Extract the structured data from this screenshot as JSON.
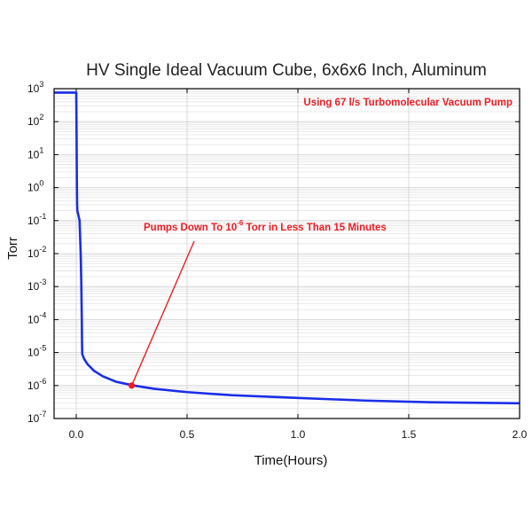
{
  "chart_data": {
    "type": "line",
    "title": "HV Single Ideal Vacuum Cube, 6x6x6 Inch, Aluminum",
    "xlabel": "Time(Hours)",
    "ylabel": "Torr",
    "y_scale": "log",
    "xlim": [
      -0.1,
      2.0
    ],
    "ylim_exponents": [
      -7,
      3
    ],
    "x_ticks": [
      "0.0",
      "0.5",
      "1.0",
      "1.5",
      "2.0"
    ],
    "x_tick_values": [
      0,
      0.5,
      1.0,
      1.5,
      2.0
    ],
    "y_tick_base": "10",
    "y_tick_exponents": [
      "3",
      "2",
      "1",
      "0",
      "-1",
      "-2",
      "-3",
      "-4",
      "-5",
      "-6",
      "-7"
    ],
    "grid": true,
    "line_color": "#1a2ee8",
    "series": [
      {
        "points": [
          [
            -0.1,
            760
          ],
          [
            0.0,
            760
          ],
          [
            0.001,
            100
          ],
          [
            0.003,
            1
          ],
          [
            0.004,
            0.3
          ],
          [
            0.005,
            0.2
          ],
          [
            0.015,
            0.1
          ],
          [
            0.02,
            0.01
          ],
          [
            0.023,
            0.001
          ],
          [
            0.025,
            0.0001
          ],
          [
            0.026,
            2e-05
          ],
          [
            0.027,
            9e-06
          ],
          [
            0.035,
            6.5e-06
          ],
          [
            0.05,
            4.5e-06
          ],
          [
            0.08,
            2.8e-06
          ],
          [
            0.12,
            1.9e-06
          ],
          [
            0.18,
            1.3e-06
          ],
          [
            0.26,
            1e-06
          ],
          [
            0.35,
            8e-07
          ],
          [
            0.5,
            6.3e-07
          ],
          [
            0.7,
            5.1e-07
          ],
          [
            1.0,
            4.2e-07
          ],
          [
            1.3,
            3.5e-07
          ],
          [
            1.6,
            3.1e-07
          ],
          [
            2.0,
            2.9e-07
          ]
        ]
      }
    ],
    "annotations": [
      {
        "text_before": "Pumps Down To 10",
        "superscript": "-6",
        "text_after": " Torr in Less Than 15 Minutes",
        "point": [
          0.25,
          1e-06
        ],
        "color": "#ee1c25"
      },
      {
        "text": "Using 67 l/s Turbomolecular Vacuum Pump",
        "color": "#ee1c25"
      }
    ]
  }
}
